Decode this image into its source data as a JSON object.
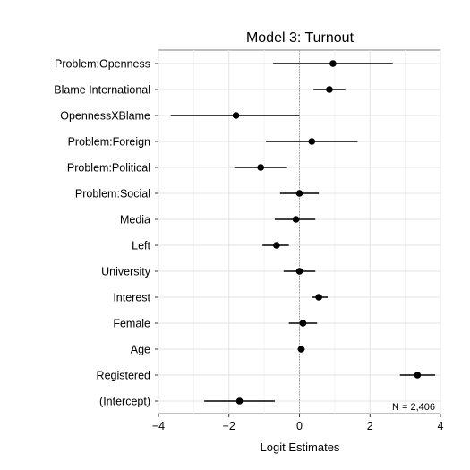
{
  "chart_data": {
    "type": "scatter",
    "subtype": "coefficient-plot",
    "title": "Model 3: Turnout",
    "xlabel": "Logit Estimates",
    "ylabel": "",
    "xlim": [
      -4,
      4
    ],
    "xticks": [
      -4,
      -2,
      0,
      2,
      4
    ],
    "xtick_labels": [
      "−4",
      "−2",
      "0",
      "2",
      "4"
    ],
    "reference_line": 0,
    "grid": true,
    "annotation": "N = 2,406",
    "series": [
      {
        "values": [
          {
            "label": "Problem:Openness",
            "estimate": 0.95,
            "lower": -0.75,
            "upper": 2.65
          },
          {
            "label": "Blame International",
            "estimate": 0.85,
            "lower": 0.4,
            "upper": 1.3
          },
          {
            "label": "OpennessXBlame",
            "estimate": -1.8,
            "lower": -3.65,
            "upper": 0.0
          },
          {
            "label": "Problem:Foreign",
            "estimate": 0.35,
            "lower": -0.95,
            "upper": 1.65
          },
          {
            "label": "Problem:Political",
            "estimate": -1.1,
            "lower": -1.85,
            "upper": -0.35
          },
          {
            "label": "Problem:Social",
            "estimate": 0.0,
            "lower": -0.55,
            "upper": 0.55
          },
          {
            "label": "Media",
            "estimate": -0.1,
            "lower": -0.7,
            "upper": 0.45
          },
          {
            "label": "Left",
            "estimate": -0.65,
            "lower": -1.05,
            "upper": -0.3
          },
          {
            "label": "University",
            "estimate": 0.0,
            "lower": -0.45,
            "upper": 0.45
          },
          {
            "label": "Interest",
            "estimate": 0.55,
            "lower": 0.35,
            "upper": 0.8
          },
          {
            "label": "Female",
            "estimate": 0.1,
            "lower": -0.3,
            "upper": 0.5
          },
          {
            "label": "Age",
            "estimate": 0.05,
            "lower": -0.05,
            "upper": 0.15
          },
          {
            "label": "Registered",
            "estimate": 3.35,
            "lower": 2.85,
            "upper": 3.85
          },
          {
            "label": "(Intercept)",
            "estimate": -1.7,
            "lower": -2.7,
            "upper": -0.7
          }
        ]
      }
    ]
  }
}
